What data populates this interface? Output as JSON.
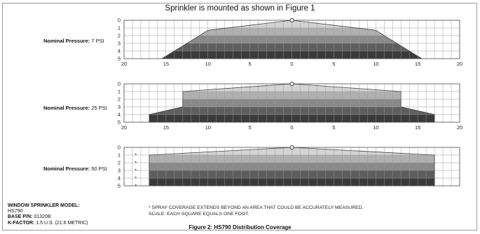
{
  "title": "Sprinkler is mounted as shown in Figure 1",
  "caption": "Figure 2: HS790 Distribution Coverage",
  "model": {
    "model_label": "WINDOW SPRINKLER MODEL:",
    "model_value": "HS790",
    "base_pn_label": "BASE P/N:",
    "base_pn_value": "01320B",
    "kfactor_label": "K-FACTOR:",
    "kfactor_value": "1.5 U.S. (21.6 METRIC)"
  },
  "notes": {
    "note1": "* SPRAY COVERAGE EXTENDS BEYOND AN AREA THAT COULD BE ACCURATELY MEASURED.",
    "note2": "SCALE: EACH SQUARE EQUALS ONE FOOT."
  },
  "colors": {
    "grid": "#9a9a9a",
    "axis": "#444444",
    "band1": "#d3d3d3",
    "band2": "#b0b0b0",
    "band3": "#8a8a8a",
    "band4": "#5e5e5e",
    "band5": "#3a3a3a"
  },
  "chart_data": [
    {
      "type": "area",
      "label_prefix": "Nominal Pressure:",
      "label_value": "7 PSI",
      "xlim": [
        -20,
        20
      ],
      "ylim": [
        0,
        5
      ],
      "x_ticks": [
        "20",
        "15",
        "10",
        "5",
        "0",
        "5",
        "10",
        "15",
        "20"
      ],
      "y_ticks": [
        "0",
        "1",
        "2",
        "3",
        "4",
        "5"
      ],
      "profile": [
        [
          -15.5,
          5
        ],
        [
          -14,
          4
        ],
        [
          -11,
          2
        ],
        [
          -10,
          1.3
        ],
        [
          0,
          0
        ],
        [
          10,
          1.3
        ],
        [
          11,
          2
        ],
        [
          14,
          4
        ],
        [
          15.5,
          5
        ]
      ],
      "asterisk": false
    },
    {
      "type": "area",
      "label_prefix": "Nominal Pressure:",
      "label_value": "25 PSI",
      "xlim": [
        -20,
        20
      ],
      "ylim": [
        0,
        5
      ],
      "x_ticks": [
        "20",
        "15",
        "10",
        "5",
        "0",
        "5",
        "10",
        "15",
        "20"
      ],
      "y_ticks": [
        "0",
        "1",
        "2",
        "3",
        "4",
        "5"
      ],
      "profile": [
        [
          -17,
          5
        ],
        [
          -17,
          4
        ],
        [
          -13,
          3
        ],
        [
          -13,
          1
        ],
        [
          0,
          0
        ],
        [
          13,
          1
        ],
        [
          13,
          3
        ],
        [
          17,
          4
        ],
        [
          17,
          5
        ]
      ],
      "asterisk": false
    },
    {
      "type": "area",
      "label_prefix": "Nominal Pressure:",
      "label_value": "50 PSI",
      "xlim": [
        -20,
        20
      ],
      "ylim": [
        0,
        5
      ],
      "x_ticks": [],
      "y_ticks": [
        "0",
        "1",
        "2",
        "3",
        "4",
        "5"
      ],
      "profile": [
        [
          -17,
          5
        ],
        [
          -17,
          1
        ],
        [
          0,
          0
        ],
        [
          17,
          1
        ],
        [
          17,
          5
        ]
      ],
      "asterisk": true,
      "asterisk_symbol": "*"
    }
  ]
}
